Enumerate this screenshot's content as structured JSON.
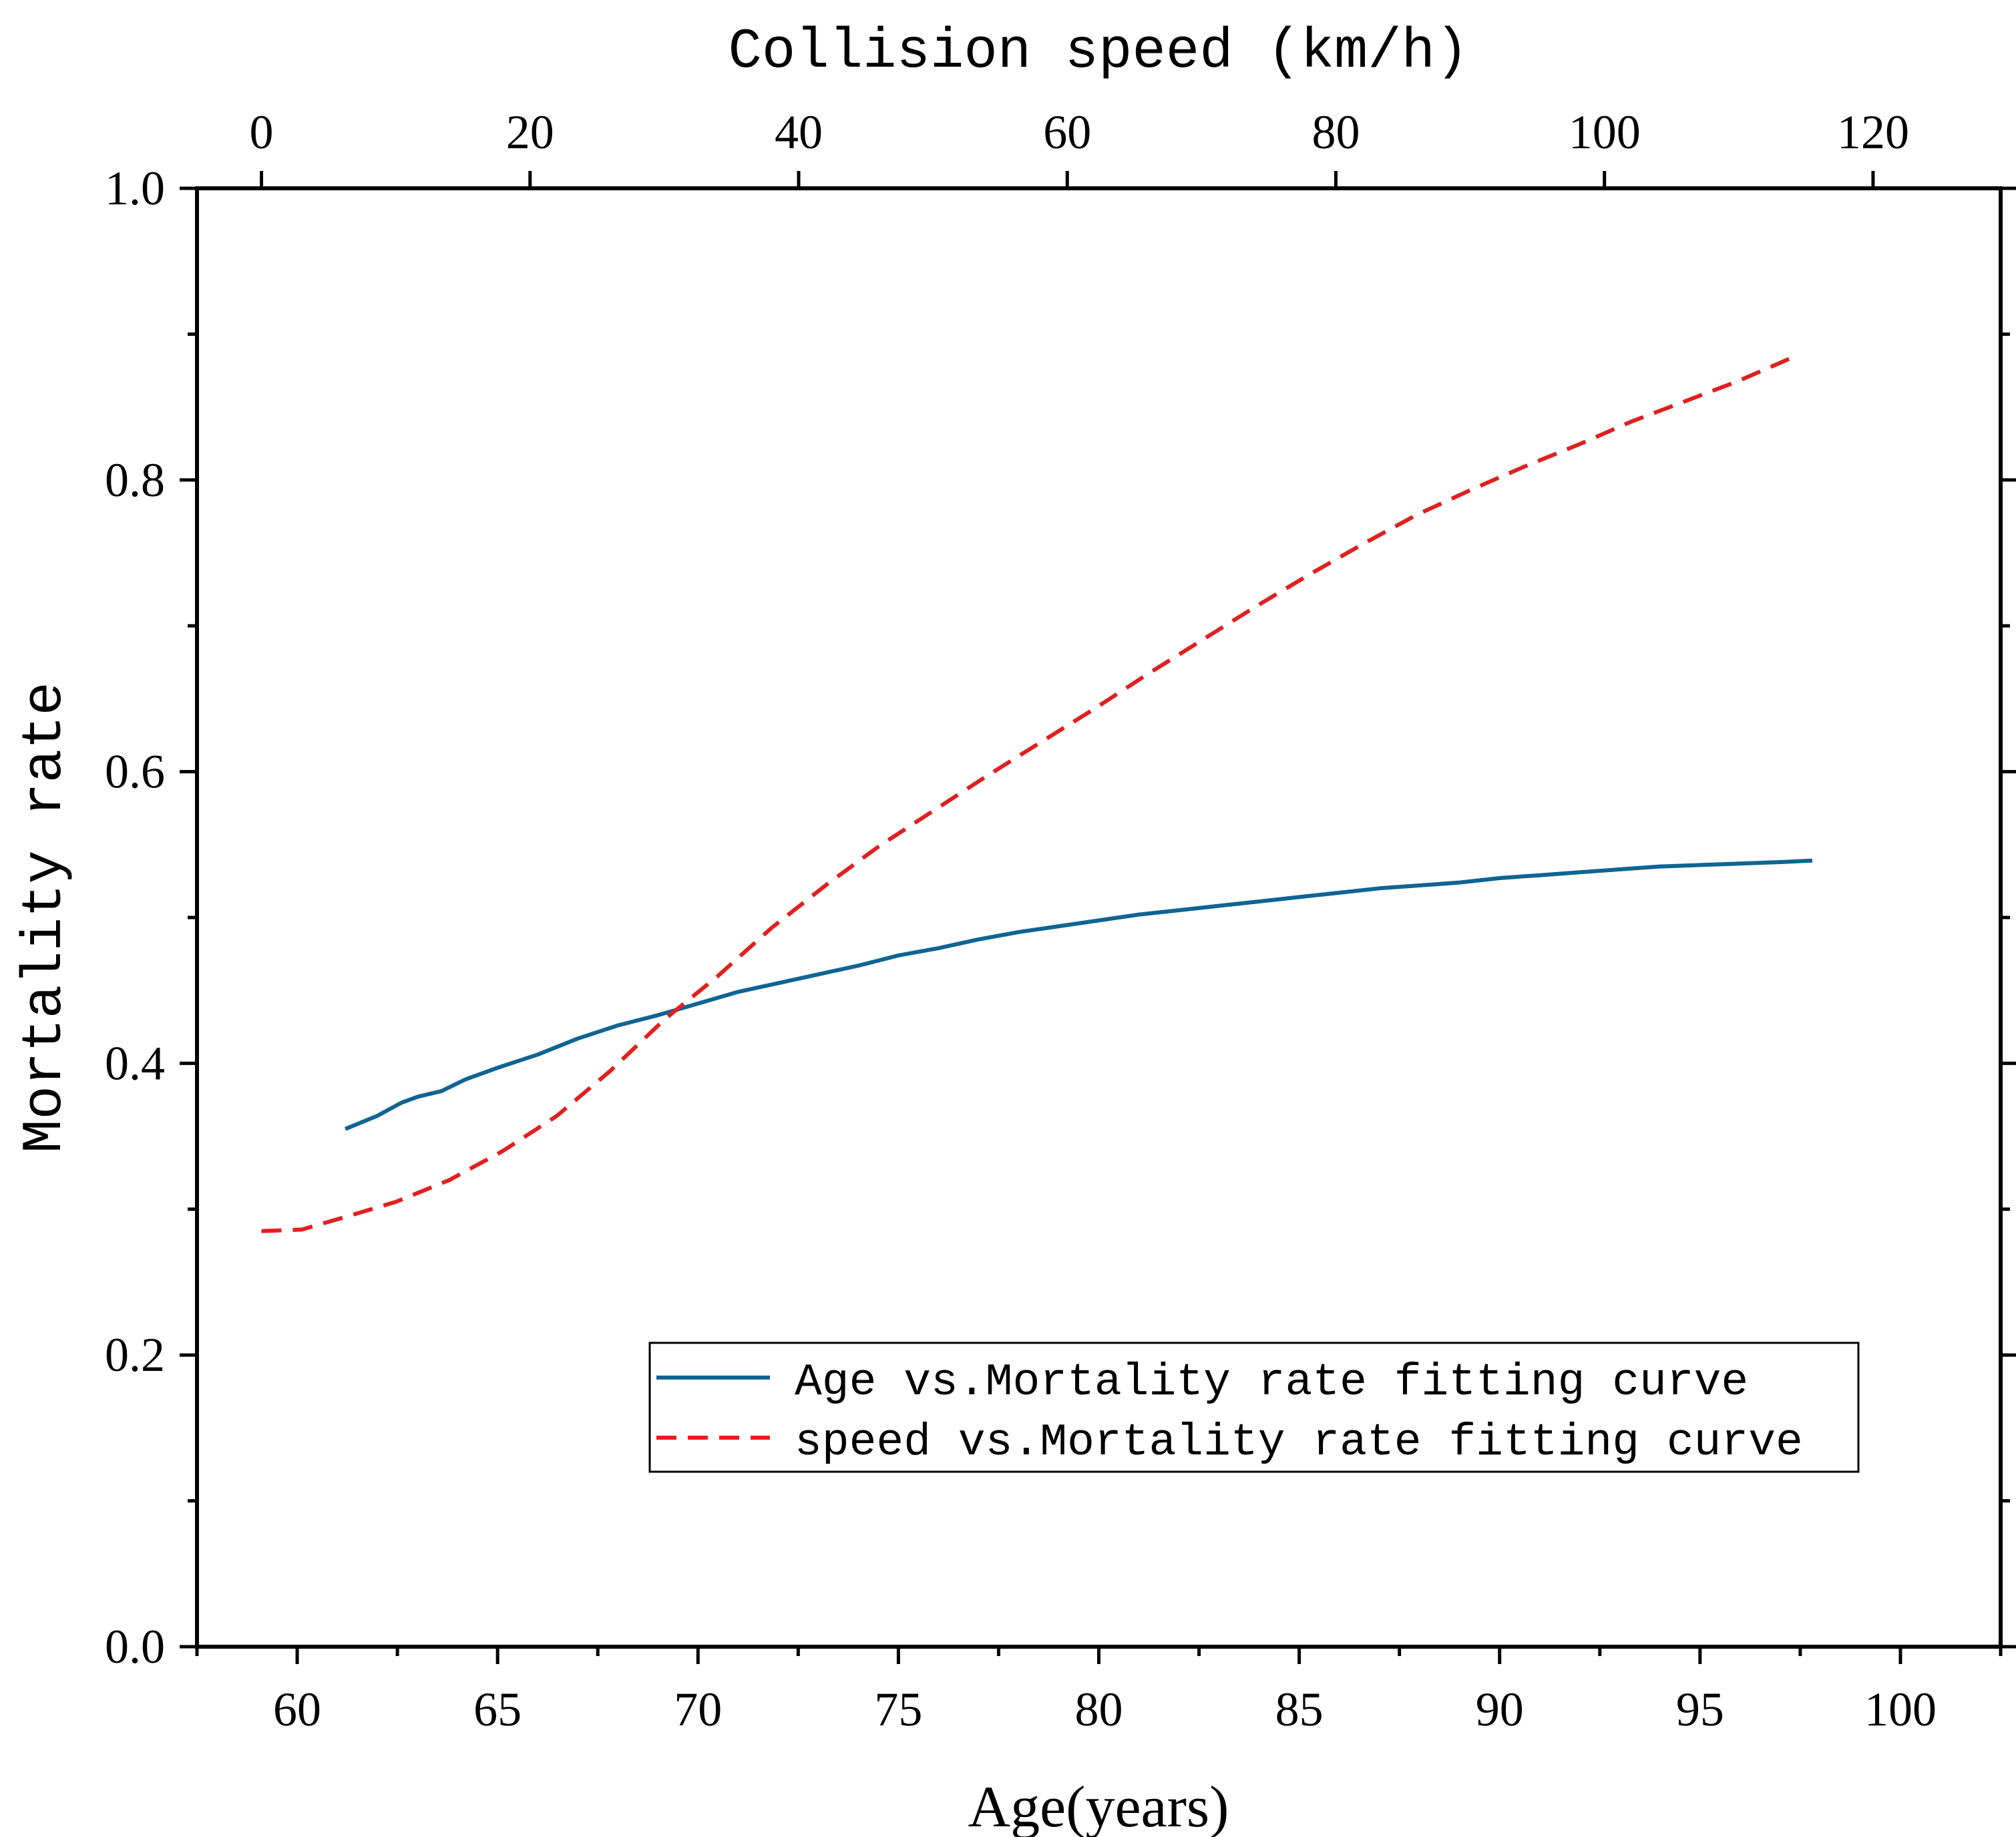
{
  "chart_data": {
    "type": "line",
    "title": "",
    "xlabel": "Age(years)",
    "x2label": "Collision speed (km/h)",
    "ylabel": "Mortality rate",
    "xlim": [
      57.5,
      102.5
    ],
    "x2lim": [
      -4.8,
      129.5
    ],
    "ylim": [
      0.0,
      1.0
    ],
    "x_ticks": [
      60,
      65,
      70,
      75,
      80,
      85,
      90,
      95,
      100
    ],
    "x_tick_labels": [
      "60",
      "65",
      "70",
      "75",
      "80",
      "85",
      "90",
      "95",
      "100"
    ],
    "x2_ticks": [
      0,
      20,
      40,
      60,
      80,
      100,
      120
    ],
    "x2_tick_labels": [
      "0",
      "20",
      "40",
      "60",
      "80",
      "100",
      "120"
    ],
    "y_ticks": [
      0.0,
      0.2,
      0.4,
      0.6,
      0.8,
      1.0
    ],
    "y_tick_labels": [
      "0.0",
      "0.2",
      "0.4",
      "0.6",
      "0.8",
      "1.0"
    ],
    "grid": false,
    "legend_position": "bottom-right",
    "series": [
      {
        "name": "Age vs.Mortality  rate fitting curve",
        "axis": "bottom",
        "color": "#0f6494",
        "style": "solid",
        "x": [
          61.2,
          62.0,
          62.6,
          63.0,
          63.6,
          64.2,
          65.0,
          66.0,
          67.0,
          68.0,
          69.0,
          70.0,
          71.0,
          72.0,
          73.0,
          74.0,
          75.0,
          76.0,
          77.0,
          78.0,
          79.0,
          80.0,
          81.0,
          82.0,
          83.0,
          84.0,
          85.0,
          86.0,
          87.0,
          88.0,
          89.0,
          90.0,
          91.0,
          92.0,
          93.0,
          94.0,
          95.0,
          96.0,
          97.0,
          97.8
        ],
        "y": [
          0.355,
          0.364,
          0.373,
          0.377,
          0.381,
          0.389,
          0.397,
          0.406,
          0.417,
          0.426,
          0.433,
          0.441,
          0.449,
          0.455,
          0.461,
          0.467,
          0.474,
          0.479,
          0.485,
          0.49,
          0.494,
          0.498,
          0.502,
          0.505,
          0.508,
          0.511,
          0.514,
          0.517,
          0.52,
          0.522,
          0.524,
          0.527,
          0.529,
          0.531,
          0.533,
          0.535,
          0.536,
          0.537,
          0.538,
          0.539
        ]
      },
      {
        "name": "speed vs.Mortality  rate fitting curve",
        "axis": "top",
        "color": "#e02020",
        "style": "dashed",
        "x": [
          0,
          3,
          6,
          10,
          14,
          18,
          22,
          26,
          30,
          34,
          38,
          42,
          46,
          50,
          54,
          58,
          62,
          66,
          70,
          74,
          78,
          82,
          86,
          90,
          94,
          98,
          102,
          106,
          110,
          114
        ],
        "y": [
          0.285,
          0.286,
          0.294,
          0.305,
          0.32,
          0.34,
          0.364,
          0.395,
          0.43,
          0.46,
          0.493,
          0.522,
          0.549,
          0.573,
          0.597,
          0.62,
          0.643,
          0.667,
          0.69,
          0.713,
          0.735,
          0.756,
          0.776,
          0.793,
          0.809,
          0.824,
          0.84,
          0.854,
          0.868,
          0.884
        ]
      }
    ]
  }
}
